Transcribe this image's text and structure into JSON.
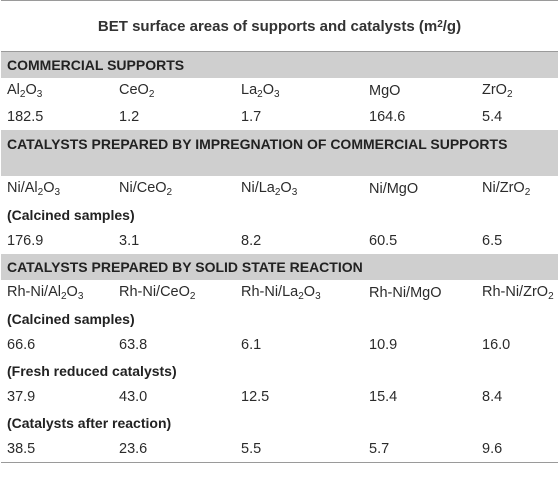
{
  "title": {
    "text": "BET surface areas of supports and catalysts (m",
    "sup": "2",
    "tail": "/g)"
  },
  "commercial": {
    "header": "COMMERCIAL SUPPORTS",
    "names": [
      {
        "a": "Al",
        "s1": "2",
        "b": "O",
        "s2": "3"
      },
      {
        "a": "CeO",
        "s1": "2",
        "b": "",
        "s2": ""
      },
      {
        "a": "La",
        "s1": "2",
        "b": "O",
        "s2": "3"
      },
      {
        "a": "MgO",
        "s1": "",
        "b": "",
        "s2": ""
      },
      {
        "a": "ZrO",
        "s1": "2",
        "b": "",
        "s2": ""
      }
    ],
    "values": [
      "182.5",
      "1.2",
      "1.7",
      "164.6",
      "5.4"
    ]
  },
  "impregnation": {
    "header": "CATALYSTS PREPARED BY IMPREGNATION OF COMMERCIAL SUPPORTS",
    "names": [
      {
        "a": "Ni/Al",
        "s1": "2",
        "b": "O",
        "s2": "3"
      },
      {
        "a": "Ni/CeO",
        "s1": "2",
        "b": "",
        "s2": ""
      },
      {
        "a": "Ni/La",
        "s1": "2",
        "b": "O",
        "s2": "3"
      },
      {
        "a": "Ni/MgO",
        "s1": "",
        "b": "",
        "s2": ""
      },
      {
        "a": "Ni/ZrO",
        "s1": "2",
        "b": "",
        "s2": ""
      }
    ],
    "calcined_label": "(Calcined samples)",
    "calcined": [
      "176.9",
      "3.1",
      "8.2",
      "60.5",
      "6.5"
    ]
  },
  "solid_state": {
    "header": "CATALYSTS PREPARED BY SOLID STATE REACTION",
    "names": [
      {
        "a": "Rh-Ni/Al",
        "s1": "2",
        "b": "O",
        "s2": "3"
      },
      {
        "a": "Rh-Ni/CeO",
        "s1": "2",
        "b": "",
        "s2": ""
      },
      {
        "a": "Rh-Ni/La",
        "s1": "2",
        "b": "O",
        "s2": "3"
      },
      {
        "a": "Rh-Ni/MgO",
        "s1": "",
        "b": "",
        "s2": ""
      },
      {
        "a": "Rh-Ni/ZrO",
        "s1": "2",
        "b": "",
        "s2": ""
      }
    ],
    "calcined_label": "(Calcined samples)",
    "calcined": [
      "66.6",
      "63.8",
      "6.1",
      "10.9",
      "16.0"
    ],
    "fresh_label": "(Fresh reduced catalysts)",
    "fresh": [
      "37.9",
      "43.0",
      "12.5",
      "15.4",
      "8.4"
    ],
    "after_label": "(Catalysts after reaction)",
    "after": [
      "38.5",
      "23.6",
      "5.5",
      "5.7",
      "9.6"
    ]
  }
}
